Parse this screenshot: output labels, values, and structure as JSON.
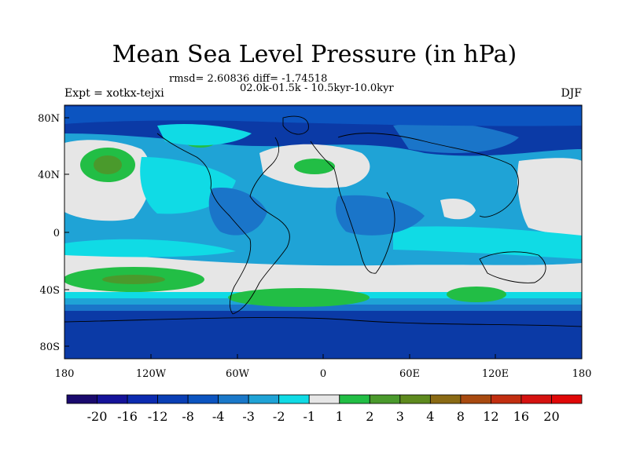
{
  "title": "Mean Sea Level Pressure (in hPa)",
  "stats_line": "rmsd= 2.60836 diff= -1.74518",
  "period_line": "02.0k-01.5k - 10.5kyr-10.0kyr",
  "experiment": "Expt = xotkx-tejxi",
  "season": "DJF",
  "axes": {
    "y_ticks": [
      "80N",
      "40N",
      "0",
      "40S",
      "80S"
    ],
    "x_ticks": [
      "180",
      "120W",
      "60W",
      "0",
      "60E",
      "120E",
      "180"
    ]
  },
  "colorbar": {
    "labels": [
      "-20",
      "-16",
      "-12",
      "-8",
      "-4",
      "-3",
      "-2",
      "-1",
      "1",
      "2",
      "3",
      "4",
      "8",
      "12",
      "16",
      "20"
    ],
    "colors": [
      "#1a0a6e",
      "#15139a",
      "#0c2bb0",
      "#0a3fb5",
      "#0c54c0",
      "#1a78c9",
      "#1fa3d6",
      "#10dbe5",
      "#e6e6e6",
      "#22be45",
      "#4a9a2c",
      "#5e8a1e",
      "#8a6a14",
      "#a84a10",
      "#c22e10",
      "#d51210",
      "#e00808"
    ]
  },
  "colors": {
    "deep_blue": "#0b3aa6",
    "mid_blue": "#1a75c9",
    "light_blue": "#1fa3d6",
    "cyan": "#10dbe5",
    "gray": "#e6e6e6",
    "green": "#22be45",
    "dark_green": "#4a9a2c"
  }
}
